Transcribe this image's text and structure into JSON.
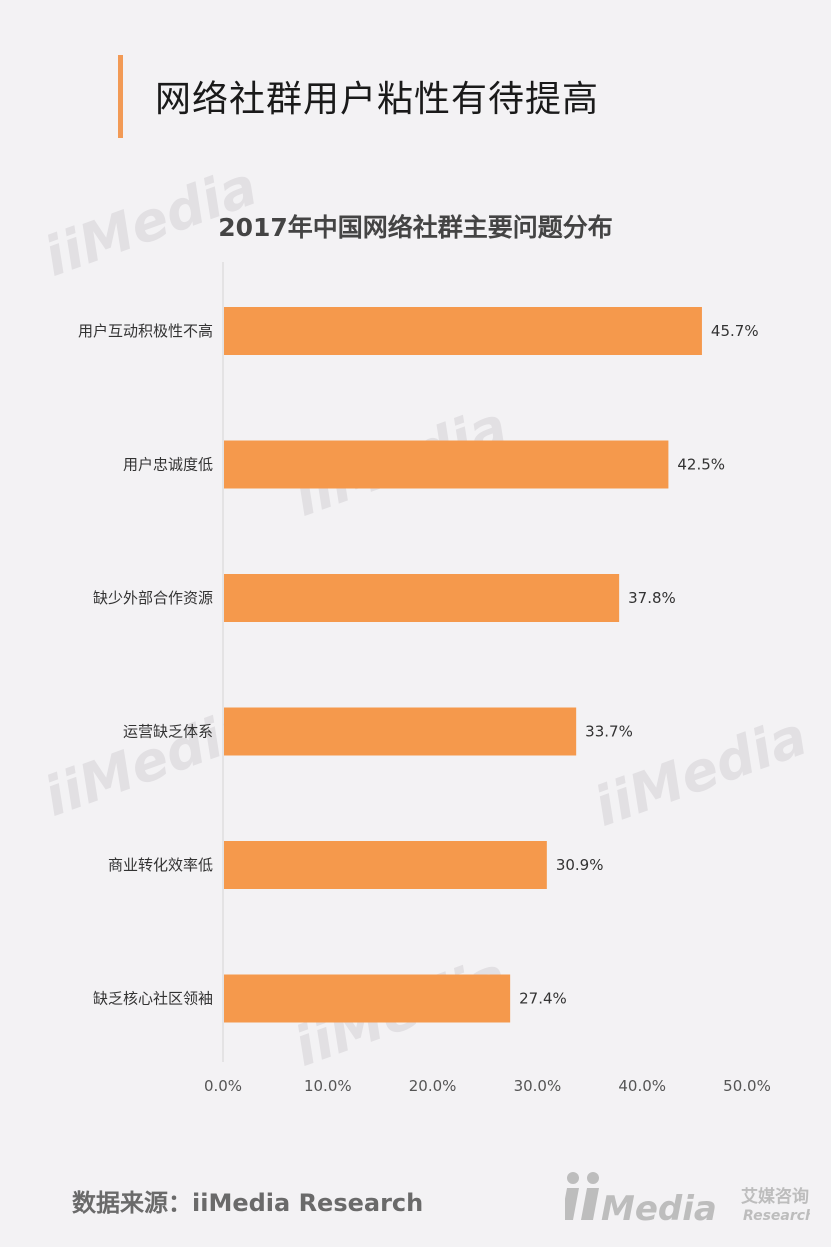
{
  "page": {
    "title": "网络社群用户粘性有待提高",
    "source": "数据来源：iiMedia Research"
  },
  "brand": {
    "name": "iiMedia",
    "cn": "艾媒咨询",
    "en": "Research",
    "accent_color": "#f29a55",
    "bar_color": "#f5994c"
  },
  "chart_data": {
    "type": "bar",
    "orientation": "horizontal",
    "title": "2017年中国网络社群主要问题分布",
    "categories": [
      "用户互动积极性不高",
      "用户忠诚度低",
      "缺少外部合作资源",
      "运营缺乏体系",
      "商业转化效率低",
      "缺乏核心社区领袖"
    ],
    "values": [
      45.7,
      42.5,
      37.8,
      33.7,
      30.9,
      27.4
    ],
    "value_labels": [
      "45.7%",
      "42.5%",
      "37.8%",
      "33.7%",
      "30.9%",
      "27.4%"
    ],
    "xlim": [
      0,
      50
    ],
    "ticks": [
      0,
      10,
      20,
      30,
      40,
      50
    ],
    "tick_labels": [
      "0.0%",
      "10.0%",
      "20.0%",
      "30.0%",
      "40.0%",
      "50.0%"
    ],
    "grid": false,
    "legend": "none"
  }
}
